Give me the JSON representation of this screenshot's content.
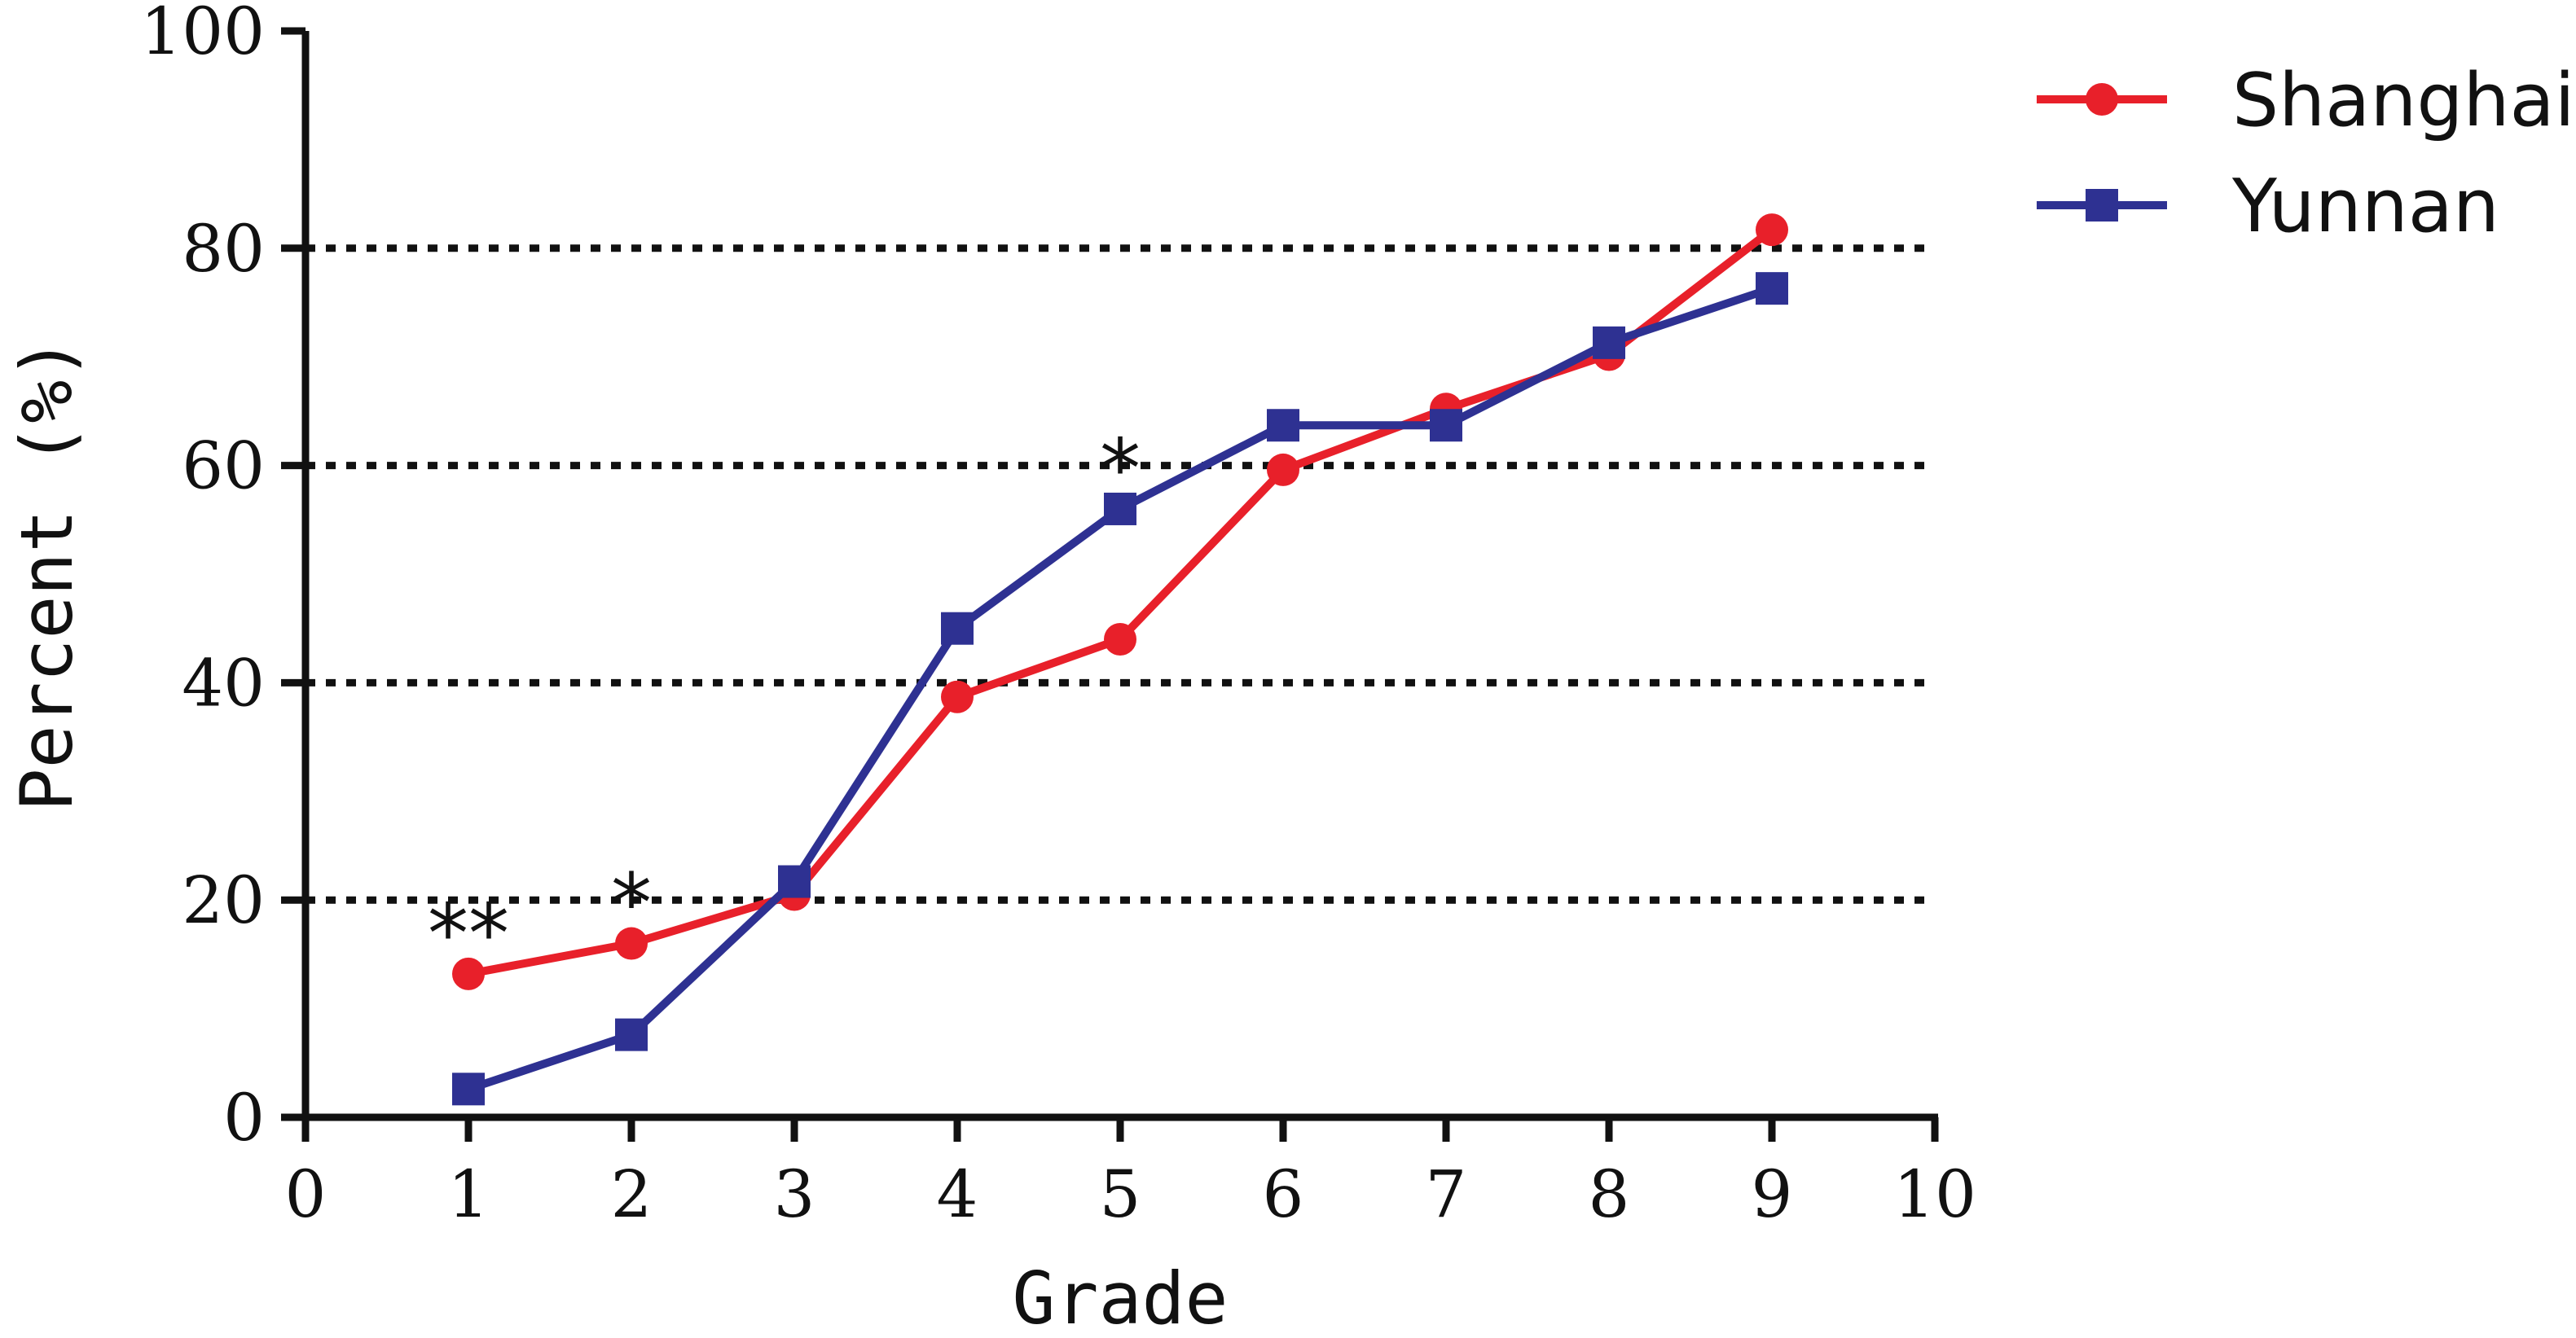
{
  "chart_data": {
    "type": "line",
    "xlabel": "Grade",
    "ylabel": "Percent (%)",
    "xlim": [
      0,
      10
    ],
    "ylim": [
      0,
      100
    ],
    "x_ticks": [
      "0",
      "1",
      "2",
      "3",
      "4",
      "5",
      "6",
      "7",
      "8",
      "9",
      "10"
    ],
    "y_ticks": [
      "0",
      "20",
      "40",
      "60",
      "80",
      "100"
    ],
    "grid": "horizontal dotted at 20, 40, 60, 80",
    "legend_position": "top-right, outside plot",
    "x": [
      1,
      2,
      3,
      4,
      5,
      6,
      7,
      8,
      9
    ],
    "series": [
      {
        "name": "Shanghai",
        "color": "#e8202a",
        "marker": "circle",
        "values": [
          13.2,
          16.0,
          20.5,
          38.7,
          44.0,
          59.6,
          65.2,
          70.2,
          81.7
        ]
      },
      {
        "name": "Yunnan",
        "color": "#2e3192",
        "marker": "square",
        "values": [
          2.6,
          7.6,
          21.7,
          45.0,
          56.0,
          63.7,
          63.7,
          71.3,
          76.3
        ]
      }
    ],
    "annotations": [
      {
        "text": "**",
        "x": 1,
        "y": 13.2
      },
      {
        "text": "*",
        "x": 2,
        "y": 16.0
      },
      {
        "text": "*",
        "x": 5,
        "y": 56.0
      }
    ]
  }
}
